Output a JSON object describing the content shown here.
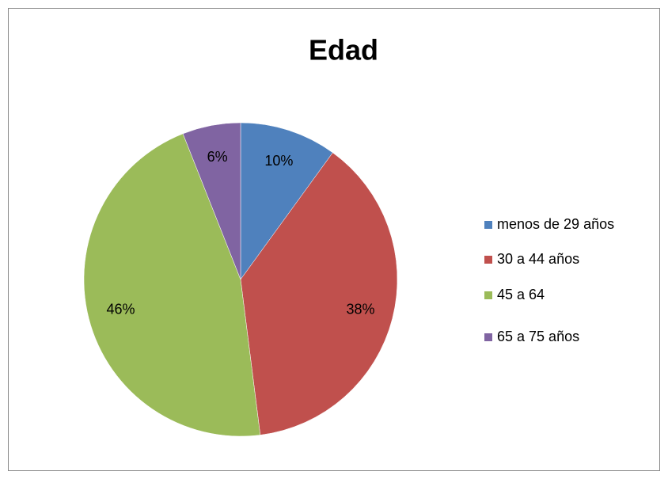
{
  "chart_data": {
    "type": "pie",
    "title": "Edad",
    "categories": [
      "menos de 29 años",
      "30 a 44 años",
      "45 a 64",
      "65 a 75 años"
    ],
    "values": [
      10,
      38,
      46,
      6
    ],
    "value_labels": [
      "10%",
      "38%",
      "46%",
      "6%"
    ],
    "colors": [
      "#4f81bd",
      "#c0504d",
      "#9bbb59",
      "#8064a2"
    ],
    "legend": "right"
  }
}
